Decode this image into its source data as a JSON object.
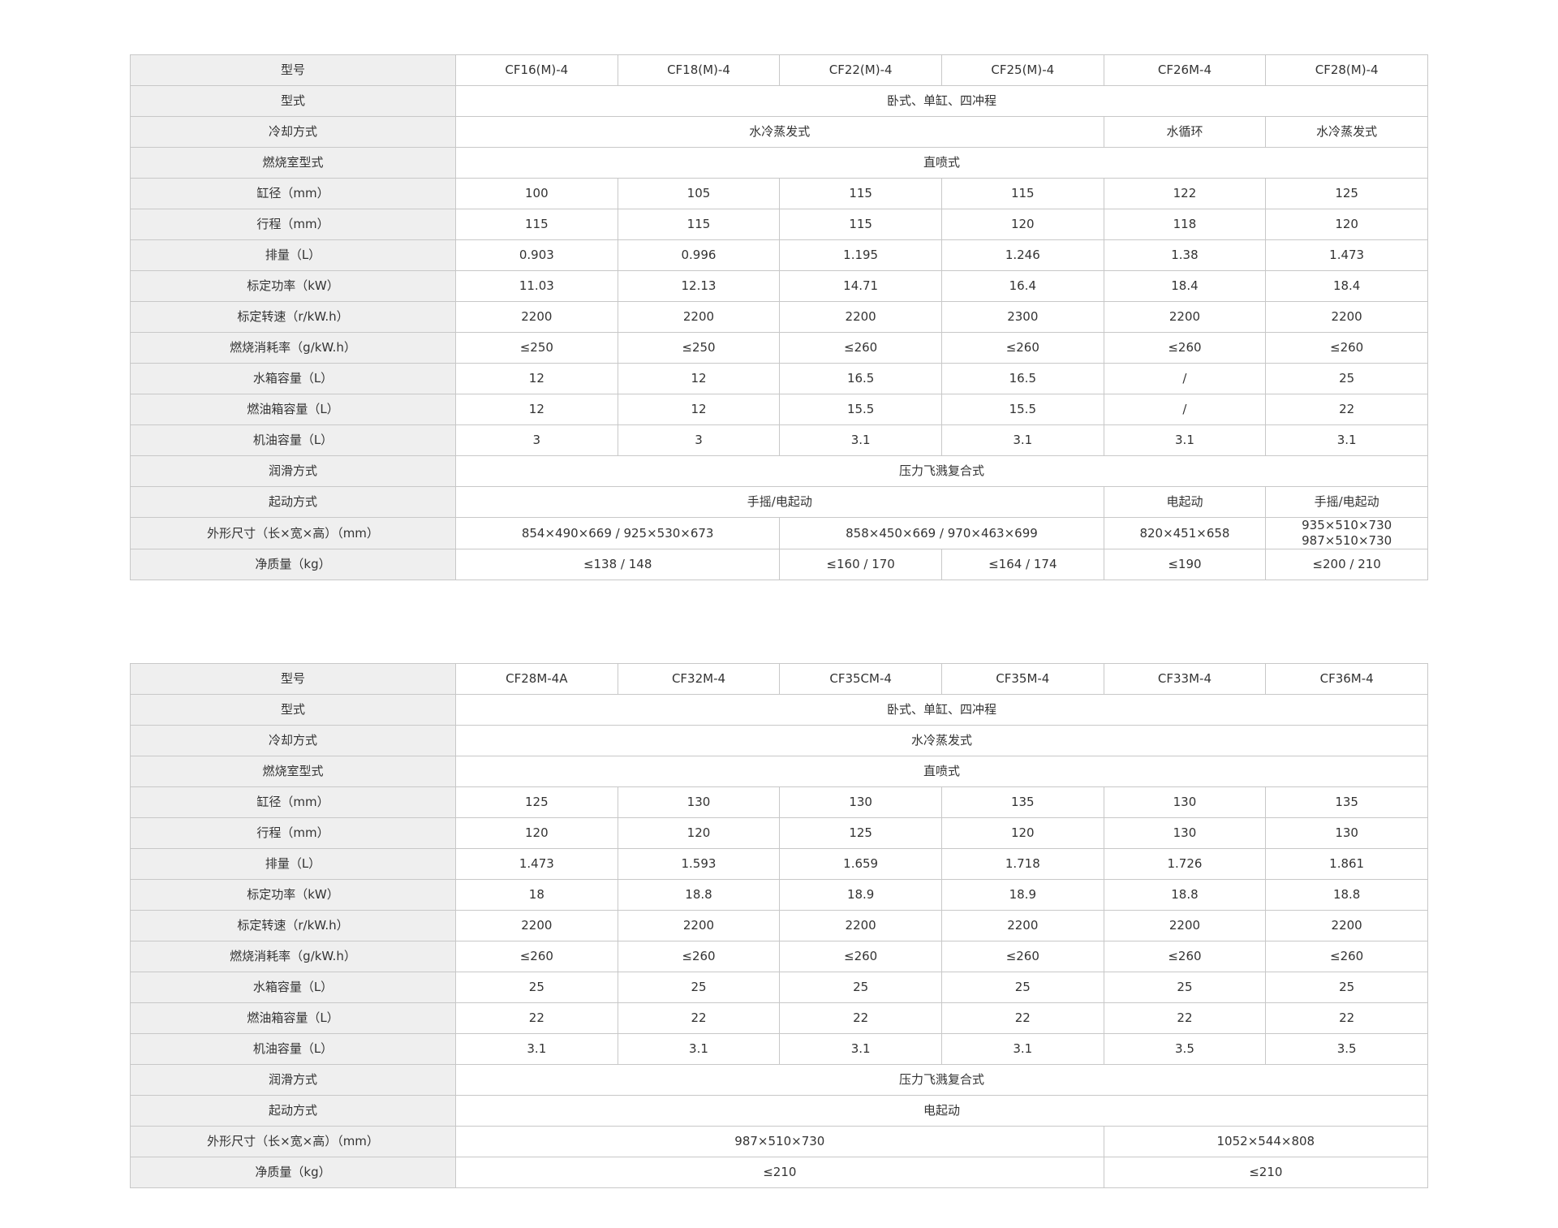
{
  "tables": [
    {
      "rows": [
        {
          "label": "型号",
          "cells": [
            {
              "t": "CF16(M)-4",
              "span": 1
            },
            {
              "t": "CF18(M)-4",
              "span": 1
            },
            {
              "t": "CF22(M)-4",
              "span": 1
            },
            {
              "t": "CF25(M)-4",
              "span": 1
            },
            {
              "t": "CF26M-4",
              "span": 1
            },
            {
              "t": "CF28(M)-4",
              "span": 1
            }
          ]
        },
        {
          "label": "型式",
          "cells": [
            {
              "t": "卧式、单缸、四冲程",
              "span": 6
            }
          ]
        },
        {
          "label": "冷却方式",
          "cells": [
            {
              "t": "水冷蒸发式",
              "span": 4
            },
            {
              "t": "水循环",
              "span": 1
            },
            {
              "t": "水冷蒸发式",
              "span": 1
            }
          ]
        },
        {
          "label": "燃烧室型式",
          "cells": [
            {
              "t": "直喷式",
              "span": 6
            }
          ]
        },
        {
          "label": "缸径（mm）",
          "cells": [
            {
              "t": "100",
              "span": 1
            },
            {
              "t": "105",
              "span": 1
            },
            {
              "t": "115",
              "span": 1
            },
            {
              "t": "115",
              "span": 1
            },
            {
              "t": "122",
              "span": 1
            },
            {
              "t": "125",
              "span": 1
            }
          ]
        },
        {
          "label": "行程（mm）",
          "cells": [
            {
              "t": "115",
              "span": 1
            },
            {
              "t": "115",
              "span": 1
            },
            {
              "t": "115",
              "span": 1
            },
            {
              "t": "120",
              "span": 1
            },
            {
              "t": "118",
              "span": 1
            },
            {
              "t": "120",
              "span": 1
            }
          ]
        },
        {
          "label": "排量（L）",
          "cells": [
            {
              "t": "0.903",
              "span": 1
            },
            {
              "t": "0.996",
              "span": 1
            },
            {
              "t": "1.195",
              "span": 1
            },
            {
              "t": "1.246",
              "span": 1
            },
            {
              "t": "1.38",
              "span": 1
            },
            {
              "t": "1.473",
              "span": 1
            }
          ]
        },
        {
          "label": "标定功率（kW）",
          "cells": [
            {
              "t": "11.03",
              "span": 1
            },
            {
              "t": "12.13",
              "span": 1
            },
            {
              "t": "14.71",
              "span": 1
            },
            {
              "t": "16.4",
              "span": 1
            },
            {
              "t": "18.4",
              "span": 1
            },
            {
              "t": "18.4",
              "span": 1
            }
          ]
        },
        {
          "label": "标定转速（r/kW.h）",
          "cells": [
            {
              "t": "2200",
              "span": 1
            },
            {
              "t": "2200",
              "span": 1
            },
            {
              "t": "2200",
              "span": 1
            },
            {
              "t": "2300",
              "span": 1
            },
            {
              "t": "2200",
              "span": 1
            },
            {
              "t": "2200",
              "span": 1
            }
          ]
        },
        {
          "label": "燃烧消耗率（g/kW.h）",
          "cells": [
            {
              "t": "≤250",
              "span": 1
            },
            {
              "t": "≤250",
              "span": 1
            },
            {
              "t": "≤260",
              "span": 1
            },
            {
              "t": "≤260",
              "span": 1
            },
            {
              "t": "≤260",
              "span": 1
            },
            {
              "t": "≤260",
              "span": 1
            }
          ]
        },
        {
          "label": "水箱容量（L）",
          "cells": [
            {
              "t": "12",
              "span": 1
            },
            {
              "t": "12",
              "span": 1
            },
            {
              "t": "16.5",
              "span": 1
            },
            {
              "t": "16.5",
              "span": 1
            },
            {
              "t": "/",
              "span": 1
            },
            {
              "t": "25",
              "span": 1
            }
          ]
        },
        {
          "label": "燃油箱容量（L）",
          "cells": [
            {
              "t": "12",
              "span": 1
            },
            {
              "t": "12",
              "span": 1
            },
            {
              "t": "15.5",
              "span": 1
            },
            {
              "t": "15.5",
              "span": 1
            },
            {
              "t": "/",
              "span": 1
            },
            {
              "t": "22",
              "span": 1
            }
          ]
        },
        {
          "label": "机油容量（L）",
          "cells": [
            {
              "t": "3",
              "span": 1
            },
            {
              "t": "3",
              "span": 1
            },
            {
              "t": "3.1",
              "span": 1
            },
            {
              "t": "3.1",
              "span": 1
            },
            {
              "t": "3.1",
              "span": 1
            },
            {
              "t": "3.1",
              "span": 1
            }
          ]
        },
        {
          "label": "润滑方式",
          "cells": [
            {
              "t": "压力飞溅复合式",
              "span": 6
            }
          ]
        },
        {
          "label": "起动方式",
          "cells": [
            {
              "t": "手摇/电起动",
              "span": 4
            },
            {
              "t": "电起动",
              "span": 1
            },
            {
              "t": "手摇/电起动",
              "span": 1
            }
          ]
        },
        {
          "label": "外形尺寸（长×宽×高）（mm）",
          "cells": [
            {
              "t": "854×490×669 / 925×530×673",
              "span": 2
            },
            {
              "t": "858×450×669 / 970×463×699",
              "span": 2
            },
            {
              "t": "820×451×658",
              "span": 1
            },
            {
              "t": "935×510×730\n987×510×730",
              "span": 1
            }
          ]
        },
        {
          "label": "净质量（kg）",
          "cells": [
            {
              "t": "≤138 / 148",
              "span": 2
            },
            {
              "t": "≤160 / 170",
              "span": 1
            },
            {
              "t": "≤164 / 174",
              "span": 1
            },
            {
              "t": "≤190",
              "span": 1
            },
            {
              "t": "≤200 / 210",
              "span": 1
            }
          ]
        }
      ]
    },
    {
      "rows": [
        {
          "label": "型号",
          "cells": [
            {
              "t": "CF28M-4A",
              "span": 1
            },
            {
              "t": "CF32M-4",
              "span": 1
            },
            {
              "t": "CF35CM-4",
              "span": 1
            },
            {
              "t": "CF35M-4",
              "span": 1
            },
            {
              "t": "CF33M-4",
              "span": 1
            },
            {
              "t": "CF36M-4",
              "span": 1
            }
          ]
        },
        {
          "label": "型式",
          "cells": [
            {
              "t": "卧式、单缸、四冲程",
              "span": 6
            }
          ]
        },
        {
          "label": "冷却方式",
          "cells": [
            {
              "t": "水冷蒸发式",
              "span": 6
            }
          ]
        },
        {
          "label": "燃烧室型式",
          "cells": [
            {
              "t": "直喷式",
              "span": 6
            }
          ]
        },
        {
          "label": "缸径（mm）",
          "cells": [
            {
              "t": "125",
              "span": 1
            },
            {
              "t": "130",
              "span": 1
            },
            {
              "t": "130",
              "span": 1
            },
            {
              "t": "135",
              "span": 1
            },
            {
              "t": "130",
              "span": 1
            },
            {
              "t": "135",
              "span": 1
            }
          ]
        },
        {
          "label": "行程（mm）",
          "cells": [
            {
              "t": "120",
              "span": 1
            },
            {
              "t": "120",
              "span": 1
            },
            {
              "t": "125",
              "span": 1
            },
            {
              "t": "120",
              "span": 1
            },
            {
              "t": "130",
              "span": 1
            },
            {
              "t": "130",
              "span": 1
            }
          ]
        },
        {
          "label": "排量（L）",
          "cells": [
            {
              "t": "1.473",
              "span": 1
            },
            {
              "t": "1.593",
              "span": 1
            },
            {
              "t": "1.659",
              "span": 1
            },
            {
              "t": "1.718",
              "span": 1
            },
            {
              "t": "1.726",
              "span": 1
            },
            {
              "t": "1.861",
              "span": 1
            }
          ]
        },
        {
          "label": "标定功率（kW）",
          "cells": [
            {
              "t": "18",
              "span": 1
            },
            {
              "t": "18.8",
              "span": 1
            },
            {
              "t": "18.9",
              "span": 1
            },
            {
              "t": "18.9",
              "span": 1
            },
            {
              "t": "18.8",
              "span": 1
            },
            {
              "t": "18.8",
              "span": 1
            }
          ]
        },
        {
          "label": "标定转速（r/kW.h）",
          "cells": [
            {
              "t": "2200",
              "span": 1
            },
            {
              "t": "2200",
              "span": 1
            },
            {
              "t": "2200",
              "span": 1
            },
            {
              "t": "2200",
              "span": 1
            },
            {
              "t": "2200",
              "span": 1
            },
            {
              "t": "2200",
              "span": 1
            }
          ]
        },
        {
          "label": "燃烧消耗率（g/kW.h）",
          "cells": [
            {
              "t": "≤260",
              "span": 1
            },
            {
              "t": "≤260",
              "span": 1
            },
            {
              "t": "≤260",
              "span": 1
            },
            {
              "t": "≤260",
              "span": 1
            },
            {
              "t": "≤260",
              "span": 1
            },
            {
              "t": "≤260",
              "span": 1
            }
          ]
        },
        {
          "label": "水箱容量（L）",
          "cells": [
            {
              "t": "25",
              "span": 1
            },
            {
              "t": "25",
              "span": 1
            },
            {
              "t": "25",
              "span": 1
            },
            {
              "t": "25",
              "span": 1
            },
            {
              "t": "25",
              "span": 1
            },
            {
              "t": "25",
              "span": 1
            }
          ]
        },
        {
          "label": "燃油箱容量（L）",
          "cells": [
            {
              "t": "22",
              "span": 1
            },
            {
              "t": "22",
              "span": 1
            },
            {
              "t": "22",
              "span": 1
            },
            {
              "t": "22",
              "span": 1
            },
            {
              "t": "22",
              "span": 1
            },
            {
              "t": "22",
              "span": 1
            }
          ]
        },
        {
          "label": "机油容量（L）",
          "cells": [
            {
              "t": "3.1",
              "span": 1
            },
            {
              "t": "3.1",
              "span": 1
            },
            {
              "t": "3.1",
              "span": 1
            },
            {
              "t": "3.1",
              "span": 1
            },
            {
              "t": "3.5",
              "span": 1
            },
            {
              "t": "3.5",
              "span": 1
            }
          ]
        },
        {
          "label": "润滑方式",
          "cells": [
            {
              "t": "压力飞溅复合式",
              "span": 6
            }
          ]
        },
        {
          "label": "起动方式",
          "cells": [
            {
              "t": "电起动",
              "span": 6
            }
          ]
        },
        {
          "label": "外形尺寸（长×宽×高）（mm）",
          "cells": [
            {
              "t": "987×510×730",
              "span": 4
            },
            {
              "t": "1052×544×808",
              "span": 2
            }
          ]
        },
        {
          "label": "净质量（kg）",
          "cells": [
            {
              "t": "≤210",
              "span": 4
            },
            {
              "t": "≤210",
              "span": 2
            }
          ]
        }
      ]
    }
  ]
}
